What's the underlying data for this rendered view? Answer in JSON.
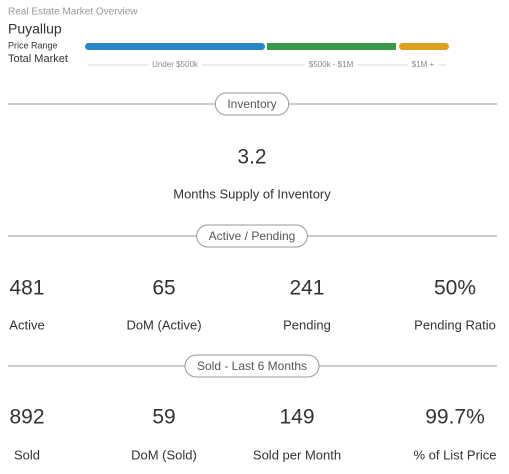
{
  "header": {
    "title": "Real Estate Market Overview",
    "city": "Puyallup",
    "price_range_label": "Price Range",
    "market_label": "Total Market"
  },
  "price_ranges": [
    "Under $500k",
    "$500k - $1M",
    "$1M +"
  ],
  "sections": [
    {
      "title": "Inventory",
      "stats": [
        {
          "value": "3.2",
          "label": "Months Supply of Inventory"
        }
      ]
    },
    {
      "title": "Active / Pending",
      "stats": [
        {
          "value": "481",
          "label": "Active"
        },
        {
          "value": "65",
          "label": "DoM (Active)"
        },
        {
          "value": "241",
          "label": "Pending"
        },
        {
          "value": "50%",
          "label": "Pending Ratio"
        }
      ]
    },
    {
      "title": "Sold - Last 6 Months",
      "stats": [
        {
          "value": "892",
          "label": "Sold"
        },
        {
          "value": "59",
          "label": "DoM (Sold)"
        },
        {
          "value": "149",
          "label": "Sold per Month"
        },
        {
          "value": "99.7%",
          "label": "% of List Price"
        }
      ]
    }
  ]
}
